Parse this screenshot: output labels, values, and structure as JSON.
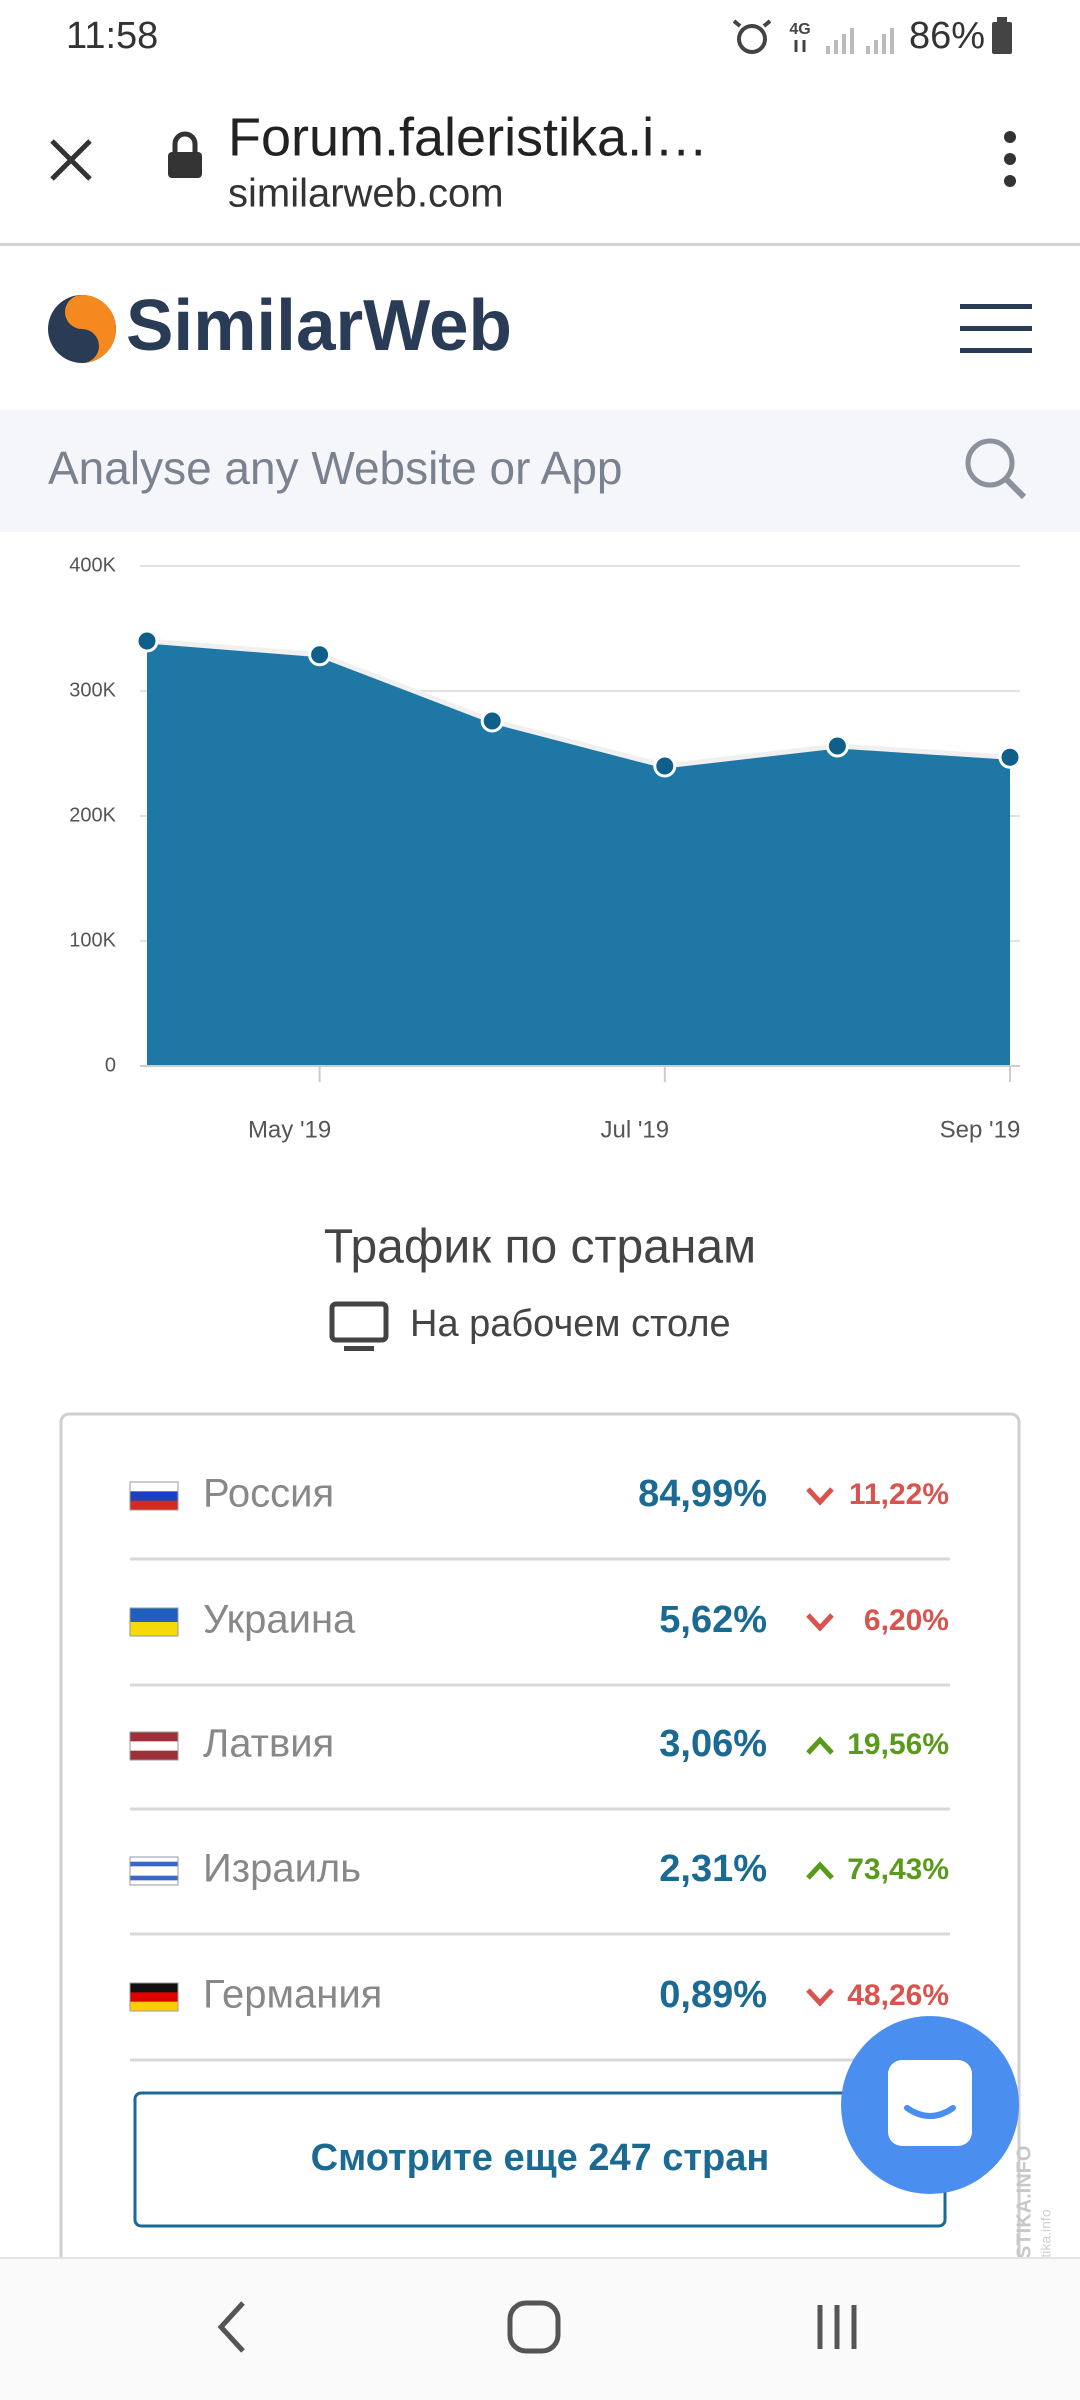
{
  "status_bar": {
    "time": "11:58",
    "network": "4G",
    "battery": "86%"
  },
  "browser_bar": {
    "title": "Forum.faleristika.i…",
    "url": "similarweb.com"
  },
  "header": {
    "logo": "SimilarWeb"
  },
  "search": {
    "placeholder": "Analyse any Website or App"
  },
  "chart_data": {
    "type": "area",
    "categories": [
      null,
      "May '19",
      null,
      "Jul '19",
      null,
      "Sep '19"
    ],
    "values": [
      340000,
      329000,
      276000,
      240000,
      256000,
      247000
    ],
    "color": "#1f77a6",
    "ylim": [
      0,
      400000
    ],
    "yticks": [
      0,
      {
        "value": 100000,
        "label": "100K"
      },
      {
        "value": 200000,
        "label": "200K"
      },
      {
        "value": 300000,
        "label": "300K"
      },
      {
        "value": 400000,
        "label": "400K"
      }
    ],
    "grid": true
  },
  "countries": {
    "title": "Трафик по странам",
    "subtitle": "На рабочем столе",
    "rows": [
      {
        "flag": [
          "#ffffff",
          "#1c3fc4",
          "#d52b1e"
        ],
        "name": "Россия",
        "share": "84,99%",
        "change": "11,22%",
        "trend": "down"
      },
      {
        "flag": [
          "#1e5fc0",
          "#f5d90a"
        ],
        "name": "Украина",
        "share": "5,62%",
        "change": "6,20%",
        "trend": "down"
      },
      {
        "flag": [
          "#9e3039",
          "#ffffff",
          "#9e3039"
        ],
        "name": "Латвия",
        "share": "3,06%",
        "change": "19,56%",
        "trend": "up"
      },
      {
        "flag": [
          "#ffffff",
          "#3a66c8",
          "#ffffff",
          "#ffffff",
          "#3a66c8",
          "#ffffff"
        ],
        "name": "Израиль",
        "share": "2,31%",
        "change": "73,43%",
        "trend": "up"
      },
      {
        "flag": [
          "#111111",
          "#dd0000",
          "#ffce00"
        ],
        "name": "Германия",
        "share": "0,89%",
        "change": "48,26%",
        "trend": "down"
      }
    ],
    "button": "Смотрите еще 247 стран"
  },
  "watermark": {
    "site": "FALERISTIKA.INFO",
    "url": "http://faleristika.info"
  }
}
